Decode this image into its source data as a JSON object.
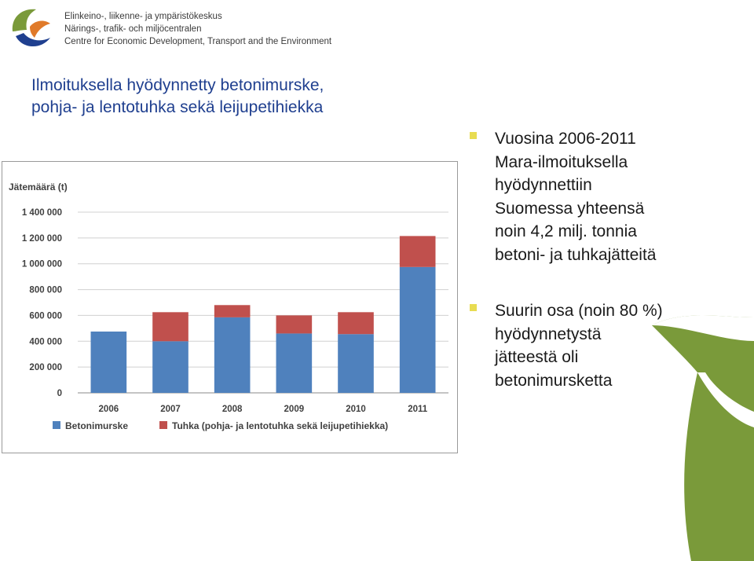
{
  "header": {
    "org_lines": [
      "Elinkeino-, liikenne- ja ympäristökeskus",
      "Närings-, trafik- och miljöcentralen",
      "Centre for Economic Development, Transport and the Environment"
    ]
  },
  "slide": {
    "title_lines": [
      "Ilmoituksella hyödynnetty betonimurske,",
      "pohja- ja lentotuhka sekä leijupetihiekka"
    ],
    "bullets": [
      {
        "text": "Vuosina 2006-2011\nMara-ilmoituksella\nhyödynnettiin\nSuomessa yhteensä\nnoin 4,2 milj. tonnia\nbetoni- ja tuhkajätteitä"
      },
      {
        "text": "Suurin osa (noin 80 %)\nhyödynnetystä\njätteestä oli\nbetonimursketta"
      }
    ]
  },
  "colors": {
    "title": "#1f3f8f",
    "bullet_marker": "#e8dc52",
    "series_concrete": "#4f81bd",
    "series_ash": "#c0504d",
    "deco_green": "#7a9a3a"
  },
  "chart_data": {
    "type": "bar",
    "stacked": true,
    "ylabel": "Jätemäärä (t)",
    "categories": [
      "2006",
      "2007",
      "2008",
      "2009",
      "2010",
      "2011"
    ],
    "series": [
      {
        "name": "Betonimurske",
        "color": "#4f81bd",
        "values": [
          475000,
          400000,
          585000,
          460000,
          455000,
          975000
        ]
      },
      {
        "name": "Tuhka (pohja- ja lentotuhka sekä leijupetihiekka)",
        "color": "#c0504d",
        "values": [
          0,
          225000,
          95000,
          140000,
          170000,
          240000
        ]
      }
    ],
    "ylim": [
      0,
      1400000
    ],
    "yticks": [
      0,
      200000,
      400000,
      600000,
      800000,
      1000000,
      1200000,
      1400000
    ],
    "ytick_labels": [
      "0",
      "200 000",
      "400 000",
      "600 000",
      "800 000",
      "1 000 000",
      "1 200 000",
      "1 400 000"
    ],
    "grid": true,
    "legend": "bottom"
  }
}
